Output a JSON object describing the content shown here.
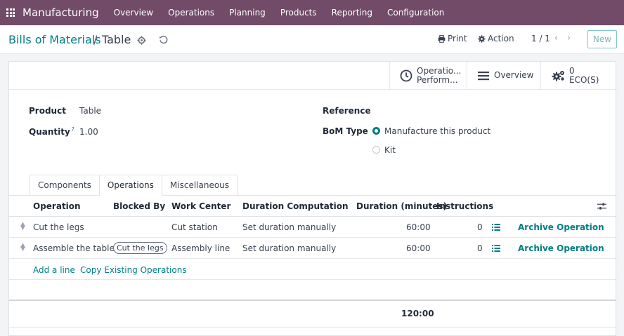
{
  "navbar": {
    "brand": "Manufacturing",
    "menu": [
      "Overview",
      "Operations",
      "Planning",
      "Products",
      "Reporting",
      "Configuration"
    ]
  },
  "breadcrumb": {
    "parent": "Bills of Materials",
    "separator": "/",
    "current": "Table"
  },
  "toolbar": {
    "print_label": "Print",
    "action_label": "Action",
    "pager": "1 / 1",
    "new_label": "New"
  },
  "smart_buttons": {
    "operations_line1": "Operatio...",
    "operations_line2": "Perform...",
    "overview": "Overview",
    "eco_count": "0",
    "eco_label": "ECO(S)"
  },
  "form": {
    "product_label": "Product",
    "product_value": "Table",
    "quantity_label": "Quantity",
    "quantity_help": "?",
    "quantity_value": "1.00",
    "reference_label": "Reference",
    "bom_type_label": "BoM Type",
    "bom_type_options": [
      "Manufacture this product",
      "Kit"
    ],
    "bom_type_selected": "Manufacture this product"
  },
  "tabs": [
    "Components",
    "Operations",
    "Miscellaneous"
  ],
  "active_tab": "Operations",
  "operations_table": {
    "columns": [
      "Operation",
      "Blocked By",
      "Work Center",
      "Duration Computation",
      "Duration (minutes)",
      "Instructions"
    ],
    "rows": [
      {
        "operation": "Cut the legs",
        "blocked_by": "",
        "work_center": "Cut station",
        "duration_computation": "Set duration manually",
        "duration": "60:00",
        "instructions": "0",
        "archive": "Archive Operation"
      },
      {
        "operation": "Assemble the table",
        "blocked_by": "Cut the legs",
        "work_center": "Assembly line",
        "duration_computation": "Set duration manually",
        "duration": "60:00",
        "instructions": "0",
        "archive": "Archive Operation"
      }
    ],
    "add_line": "Add a line",
    "copy_existing": "Copy Existing Operations",
    "total_duration": "120:00"
  },
  "colors": {
    "navbar": "#714b67",
    "link": "#017e84"
  }
}
